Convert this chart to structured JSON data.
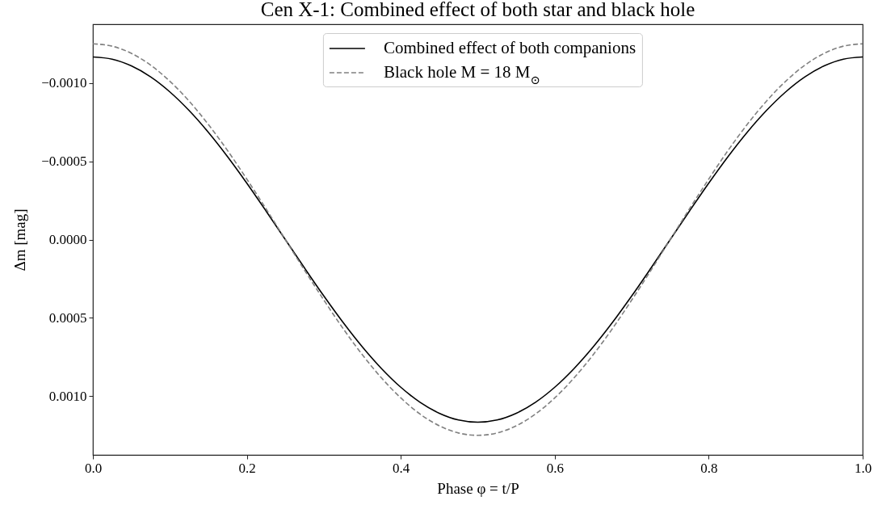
{
  "chart_data": {
    "type": "line",
    "title": "Cen X-1: Combined effect of both star and black hole",
    "xlabel": "Phase φ = t/P",
    "ylabel": "Δm [mag]",
    "x": [
      0,
      0.025,
      0.05,
      0.075,
      0.1,
      0.125,
      0.15,
      0.175,
      0.2,
      0.225,
      0.25,
      0.275,
      0.3,
      0.325,
      0.35,
      0.375,
      0.4,
      0.425,
      0.45,
      0.475,
      0.5,
      0.525,
      0.55,
      0.575,
      0.6,
      0.625,
      0.65,
      0.675,
      0.7,
      0.725,
      0.75,
      0.775,
      0.8,
      0.825,
      0.85,
      0.875,
      0.9,
      0.925,
      0.95,
      0.975,
      1
    ],
    "series": [
      {
        "name": "Combined effect of both companions",
        "color": "#000000",
        "line_style": "solid",
        "values": [
          -0.001166,
          -0.001152,
          -0.001109,
          -0.001039,
          -0.000943,
          -0.000824,
          -0.000685,
          -0.000529,
          -0.00036,
          -0.000182,
          0,
          0.000182,
          0.00036,
          0.000529,
          0.000685,
          0.000824,
          0.000943,
          0.001039,
          0.001109,
          0.001152,
          0.001166,
          0.001152,
          0.001109,
          0.001039,
          0.000943,
          0.000824,
          0.000685,
          0.000529,
          0.00036,
          0.000182,
          0,
          -0.000182,
          -0.00036,
          -0.000529,
          -0.000685,
          -0.000824,
          -0.000943,
          -0.001039,
          -0.001109,
          -0.001152,
          -0.001166
        ]
      },
      {
        "name": "Black hole M = 18 M$_{⊙}$",
        "color": "#808080",
        "line_style": "dashed",
        "values": [
          -0.00125,
          -0.001235,
          -0.001189,
          -0.001114,
          -0.001011,
          -0.000884,
          -0.000735,
          -0.000568,
          -0.000386,
          -0.000196,
          0,
          0.000196,
          0.000386,
          0.000568,
          0.000735,
          0.000884,
          0.001011,
          0.001114,
          0.001189,
          0.001235,
          0.00125,
          0.001235,
          0.001189,
          0.001114,
          0.001011,
          0.000884,
          0.000735,
          0.000568,
          0.000386,
          0.000196,
          0,
          -0.000196,
          -0.000386,
          -0.000568,
          -0.000735,
          -0.000884,
          -0.001011,
          -0.001114,
          -0.001189,
          -0.001235,
          -0.00125
        ]
      }
    ],
    "xlim": [
      0,
      1
    ],
    "ylim": [
      0.001375,
      -0.001375
    ],
    "xticks": [
      {
        "value": 0,
        "label": "0.0"
      },
      0.2,
      0.4,
      0.6,
      0.8,
      {
        "value": 1,
        "label": "1.0"
      }
    ],
    "yticks": [
      {
        "value": -0.001,
        "label": "−0.0010"
      },
      {
        "value": -0.0005,
        "label": "−0.0005"
      },
      {
        "value": 0,
        "label": "0.0000"
      },
      {
        "value": 0.0005,
        "label": "0.0005"
      },
      {
        "value": 0.001,
        "label": "0.0010"
      }
    ],
    "grid": false,
    "legend": "top"
  }
}
